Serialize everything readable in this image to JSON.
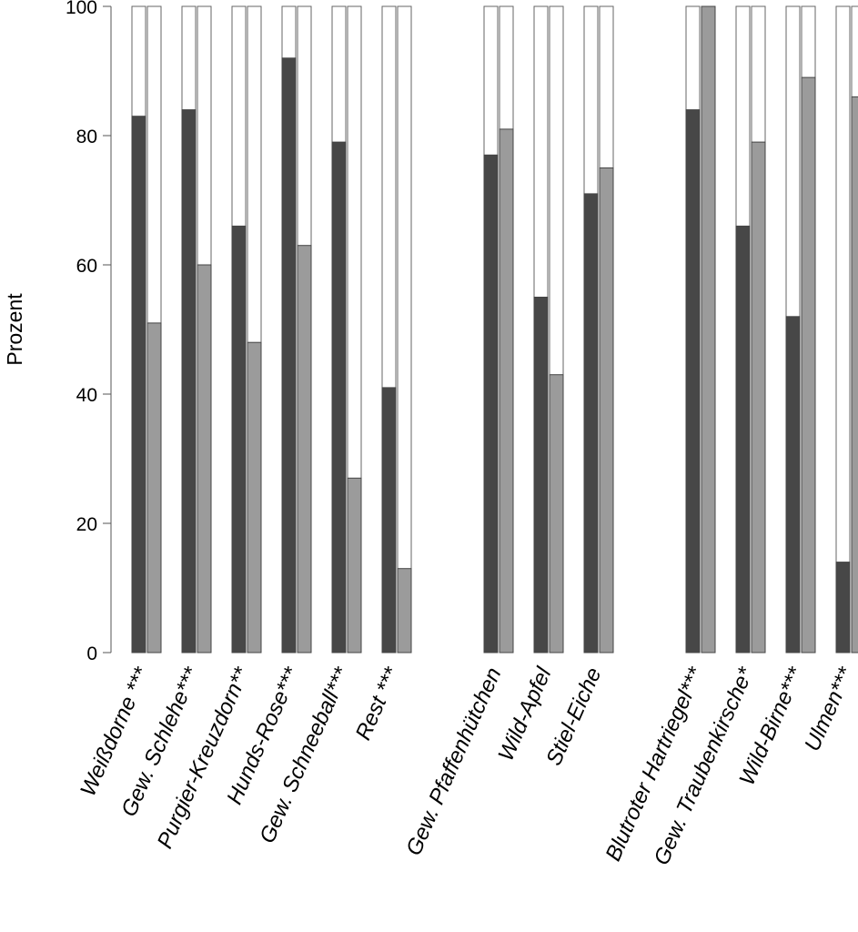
{
  "chart_data": {
    "type": "bar",
    "ylabel": "Prozent",
    "ylim": [
      0,
      100
    ],
    "yticks": [
      0,
      20,
      40,
      60,
      80,
      100
    ],
    "grid": false,
    "legend": "none",
    "stacked_total": 100,
    "colors": {
      "series_a": "#474747",
      "series_b": "#9b9b9b",
      "remainder": "#ffffff"
    },
    "categories": [
      "Weißdorne ***",
      "Gew. Schlehe***",
      "Purgier-Kreuzdorn**",
      "Hunds-Rose***",
      "Gew. Schneeball***",
      "Rest ***",
      "Gew. Pfaffenhütchen",
      "Wild-Apfel",
      "Stiel-Eiche",
      "Blutroter Hartriegel***",
      "Gew. Traubenkirsche*",
      "Wild-Birne***",
      "Ulmen***"
    ],
    "groups": [
      [
        0,
        1,
        2,
        3,
        4,
        5
      ],
      [
        6,
        7,
        8
      ],
      [
        9,
        10,
        11,
        12
      ]
    ],
    "series": [
      {
        "values": [
          83,
          84,
          66,
          92,
          79,
          41,
          77,
          55,
          71,
          84,
          66,
          52,
          14
        ]
      },
      {
        "values": [
          51,
          60,
          48,
          63,
          27,
          13,
          81,
          43,
          75,
          100,
          79,
          89,
          86
        ]
      }
    ]
  }
}
